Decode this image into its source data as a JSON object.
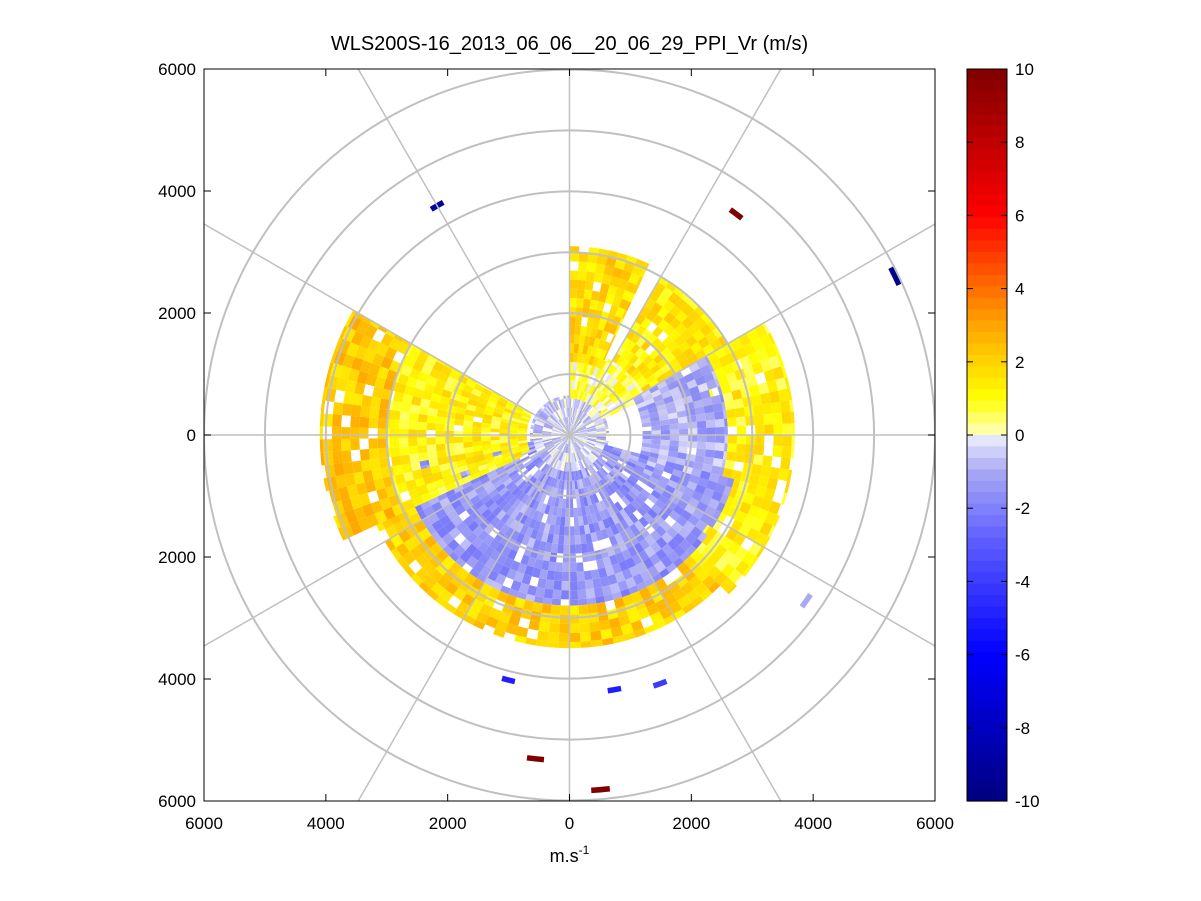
{
  "chart_data": {
    "type": "heatmap",
    "subtype": "polar-ppi-scan",
    "title": "WLS200S-16_2013_06_06__20_06_29_PPI_Vr (m/s)",
    "xlabel": "m.s",
    "xlabel_superscript": "-1",
    "ylabel": "",
    "xlim": [
      -6000,
      6000
    ],
    "ylim": [
      -6000,
      6000
    ],
    "x_tick_labels": [
      "6000",
      "4000",
      "2000",
      "0",
      "2000",
      "4000",
      "6000"
    ],
    "y_tick_labels": [
      "6000",
      "4000",
      "2000",
      "0",
      "2000",
      "4000",
      "6000"
    ],
    "grid": true,
    "range_rings_m": [
      1000,
      2000,
      3000,
      4000,
      5000,
      6000
    ],
    "radial_spokes_deg": [
      0,
      30,
      60,
      90,
      120,
      150,
      180,
      210,
      240,
      270,
      300,
      330
    ],
    "colorbar": {
      "min": -10,
      "max": 10,
      "tick_labels": [
        "10",
        "8",
        "6",
        "4",
        "2",
        "0",
        "-2",
        "-4",
        "-6",
        "-8",
        "-10"
      ],
      "ticks": [
        10,
        8,
        6,
        4,
        2,
        0,
        -2,
        -4,
        -6,
        -8,
        -10
      ],
      "stops": [
        {
          "value": -10,
          "color": "#00007f"
        },
        {
          "value": -6,
          "color": "#0000ff"
        },
        {
          "value": -3,
          "color": "#5a5aff"
        },
        {
          "value": -1,
          "color": "#a8a8f5"
        },
        {
          "value": 0,
          "color": "#f0f0ff"
        },
        {
          "value": 0.01,
          "color": "#ffffc0"
        },
        {
          "value": 1,
          "color": "#ffff00"
        },
        {
          "value": 3,
          "color": "#ffa500"
        },
        {
          "value": 6,
          "color": "#ff0000"
        },
        {
          "value": 10,
          "color": "#7f0000"
        }
      ]
    },
    "field": {
      "description": "Radial velocity field: near-zero core, positive values (yellow/orange) in north, north-east and west sectors, negative values (light blue) in the southern half, with a data gap in the north-west sector",
      "regions": [
        {
          "az_from": 0,
          "az_to": 360,
          "r_from": 0,
          "r_to": 650,
          "value": -0.6
        },
        {
          "az_from": 0,
          "az_to": 65,
          "r_from": 600,
          "r_to": 1400,
          "value": 0.6
        },
        {
          "az_from": 30,
          "az_to": 80,
          "r_from": 1400,
          "r_to": 3000,
          "value": 1.4
        },
        {
          "az_from": 0,
          "az_to": 25,
          "r_from": 1200,
          "r_to": 3100,
          "value": 1.8
        },
        {
          "az_from": 60,
          "az_to": 120,
          "r_from": 1200,
          "r_to": 2600,
          "value": -1.0
        },
        {
          "az_from": 60,
          "az_to": 135,
          "r_from": 2600,
          "r_to": 3700,
          "value": 1.2
        },
        {
          "az_from": 105,
          "az_to": 260,
          "r_from": 600,
          "r_to": 2800,
          "value": -1.4
        },
        {
          "az_from": 135,
          "az_to": 245,
          "r_from": 2800,
          "r_to": 3500,
          "value": 2.0
        },
        {
          "az_from": 245,
          "az_to": 300,
          "r_from": 700,
          "r_to": 3000,
          "value": 1.2
        },
        {
          "az_from": 245,
          "az_to": 300,
          "r_from": 3000,
          "r_to": 4100,
          "value": 2.2
        }
      ],
      "isolated_cells": [
        {
          "az": 330,
          "r": 4300,
          "value": -9
        },
        {
          "az": 37,
          "r": 4500,
          "value": 10
        },
        {
          "az": 64,
          "r": 5900,
          "value": -9.5
        },
        {
          "az": 186,
          "r": 5300,
          "value": 10
        },
        {
          "az": 175,
          "r": 5800,
          "value": 10
        },
        {
          "az": 194,
          "r": 4100,
          "value": -5
        },
        {
          "az": 170,
          "r": 4200,
          "value": -5
        },
        {
          "az": 160,
          "r": 4300,
          "value": -4
        },
        {
          "az": 125,
          "r": 4700,
          "value": -1
        }
      ]
    }
  }
}
